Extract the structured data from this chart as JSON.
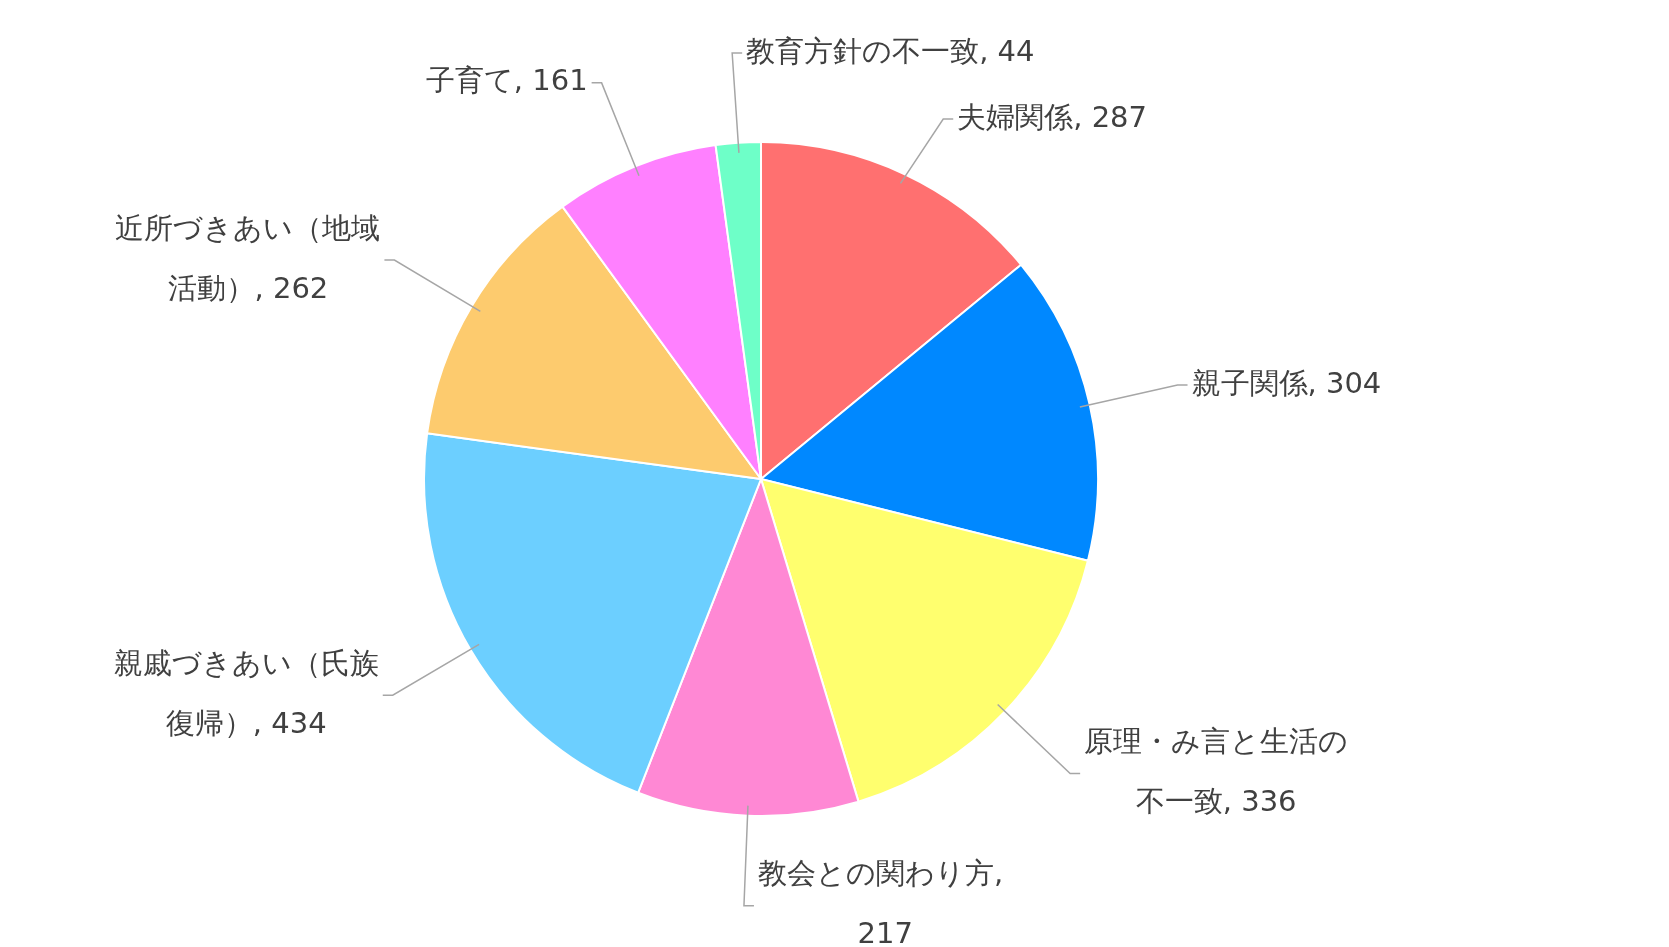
{
  "chart_data": {
    "type": "pie",
    "categories": [
      "夫婦関係, 287",
      "親子関係, 304",
      "原理・み言と生活の不一致, 336",
      "教会との関わり方, 217",
      "親戚づきあい（氏族復帰）, 434",
      "近所づきあい（地域活動）, 262",
      "子育て, 161",
      "教育方針の不一致, 44"
    ],
    "values": [
      287,
      304,
      336,
      217,
      434,
      262,
      161,
      44
    ],
    "colors": [
      "#ff7070",
      "#0088ff",
      "#ffff6e",
      "#ff88d4",
      "#6ccfff",
      "#fdcb6e",
      "#ff80ff",
      "#6effc8"
    ],
    "legend": false
  }
}
